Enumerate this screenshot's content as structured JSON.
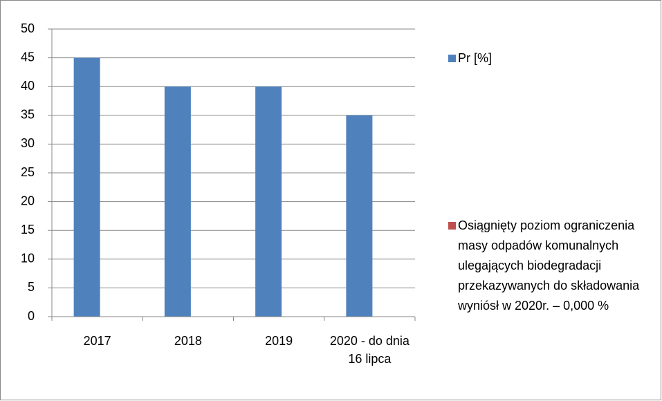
{
  "chart_data": {
    "type": "bar",
    "categories": [
      "2017",
      "2018",
      "2019",
      "2020 - do dnia 16 lipca"
    ],
    "series": [
      {
        "name": "Pr [%]",
        "color": "#4f81bd",
        "values": [
          45,
          40,
          40,
          35
        ]
      },
      {
        "name": "Osiągnięty   poziom ograniczenia masy odpadów komunalnych ulegających biodegradacji przekazywanych do składowania wyniósł  w 2020r. – 0,000 %",
        "color": "#c0504d",
        "values": [
          null,
          null,
          null,
          null
        ]
      }
    ],
    "ylim": [
      0,
      50
    ],
    "yticks": [
      0,
      5,
      10,
      15,
      20,
      25,
      30,
      35,
      40,
      45,
      50
    ],
    "grid": true,
    "legend": "right"
  }
}
